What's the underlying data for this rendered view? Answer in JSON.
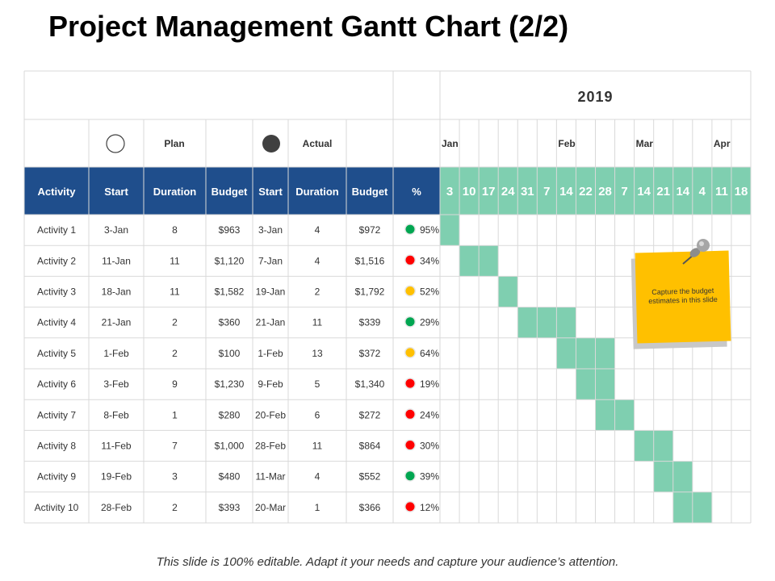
{
  "title": "Project Management Gantt Chart (2/2)",
  "footer": "This slide is 100% editable. Adapt it your needs and capture your audience’s attention.",
  "sticky_note": "Capture the budget estimates in this slide",
  "colors": {
    "header_blue": "#1f4e8c",
    "bar_green": "#7fcfb0",
    "status_green": "#00a651",
    "status_red": "#ff0000",
    "status_yellow": "#ffc000",
    "note_yellow": "#ffc000"
  },
  "chart_data": {
    "type": "table",
    "year": "2019",
    "legend": {
      "plan": "Plan",
      "actual": "Actual"
    },
    "columns": [
      "Activity",
      "Start",
      "Duration",
      "Budget",
      "Start",
      "Duration",
      "Budget",
      "%"
    ],
    "months": [
      {
        "label": "Jan",
        "week": 0
      },
      {
        "label": "Feb",
        "week": 6
      },
      {
        "label": "Mar",
        "week": 10
      },
      {
        "label": "Apr",
        "week": 14
      }
    ],
    "weeks": [
      "3",
      "10",
      "17",
      "24",
      "31",
      "7",
      "14",
      "22",
      "28",
      "7",
      "14",
      "21",
      "14",
      "4",
      "11",
      "18"
    ],
    "rows": [
      {
        "activity": "Activity 1",
        "plan_start": "3-Jan",
        "plan_duration": "8",
        "plan_budget": "$963",
        "actual_start": "3-Jan",
        "actual_duration": "4",
        "actual_budget": "$972",
        "percent": "95%",
        "status": "green",
        "bar_weeks": [
          0
        ]
      },
      {
        "activity": "Activity 2",
        "plan_start": "11-Jan",
        "plan_duration": "11",
        "plan_budget": "$1,120",
        "actual_start": "7-Jan",
        "actual_duration": "4",
        "actual_budget": "$1,516",
        "percent": "34%",
        "status": "red",
        "bar_weeks": [
          1,
          2
        ]
      },
      {
        "activity": "Activity 3",
        "plan_start": "18-Jan",
        "plan_duration": "11",
        "plan_budget": "$1,582",
        "actual_start": "19-Jan",
        "actual_duration": "2",
        "actual_budget": "$1,792",
        "percent": "52%",
        "status": "yellow",
        "bar_weeks": [
          3
        ]
      },
      {
        "activity": "Activity 4",
        "plan_start": "21-Jan",
        "plan_duration": "2",
        "plan_budget": "$360",
        "actual_start": "21-Jan",
        "actual_duration": "11",
        "actual_budget": "$339",
        "percent": "29%",
        "status": "green",
        "bar_weeks": [
          4,
          5,
          6
        ]
      },
      {
        "activity": "Activity 5",
        "plan_start": "1-Feb",
        "plan_duration": "2",
        "plan_budget": "$100",
        "actual_start": "1-Feb",
        "actual_duration": "13",
        "actual_budget": "$372",
        "percent": "64%",
        "status": "yellow",
        "bar_weeks": [
          6,
          7,
          8
        ]
      },
      {
        "activity": "Activity 6",
        "plan_start": "3-Feb",
        "plan_duration": "9",
        "plan_budget": "$1,230",
        "actual_start": "9-Feb",
        "actual_duration": "5",
        "actual_budget": "$1,340",
        "percent": "19%",
        "status": "red",
        "bar_weeks": [
          7,
          8
        ]
      },
      {
        "activity": "Activity 7",
        "plan_start": "8-Feb",
        "plan_duration": "1",
        "plan_budget": "$280",
        "actual_start": "20-Feb",
        "actual_duration": "6",
        "actual_budget": "$272",
        "percent": "24%",
        "status": "red",
        "bar_weeks": [
          8,
          9
        ]
      },
      {
        "activity": "Activity 8",
        "plan_start": "11-Feb",
        "plan_duration": "7",
        "plan_budget": "$1,000",
        "actual_start": "28-Feb",
        "actual_duration": "11",
        "actual_budget": "$864",
        "percent": "30%",
        "status": "red",
        "bar_weeks": [
          10,
          11
        ]
      },
      {
        "activity": "Activity 9",
        "plan_start": "19-Feb",
        "plan_duration": "3",
        "plan_budget": "$480",
        "actual_start": "11-Mar",
        "actual_duration": "4",
        "actual_budget": "$552",
        "percent": "39%",
        "status": "green",
        "bar_weeks": [
          11,
          12
        ]
      },
      {
        "activity": "Activity 10",
        "plan_start": "28-Feb",
        "plan_duration": "2",
        "plan_budget": "$393",
        "actual_start": "20-Mar",
        "actual_duration": "1",
        "actual_budget": "$366",
        "percent": "12%",
        "status": "red",
        "bar_weeks": [
          12,
          13
        ]
      }
    ]
  }
}
